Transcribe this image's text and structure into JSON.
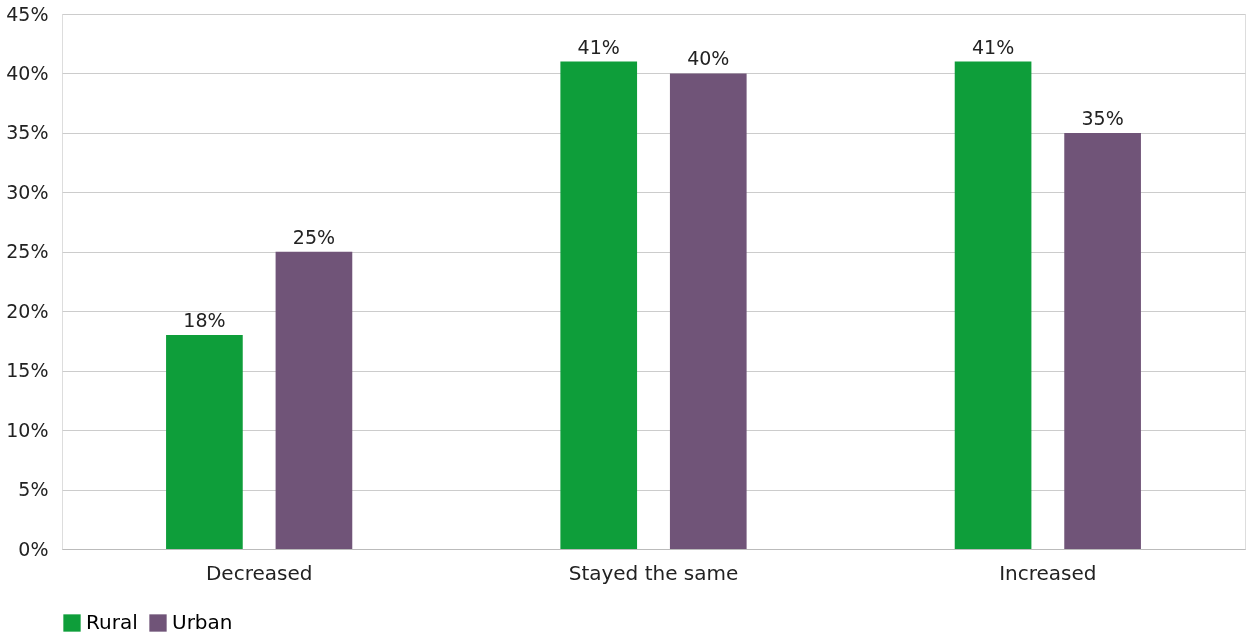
{
  "chart_data": {
    "type": "bar",
    "categories": [
      "Decreased",
      "Stayed the same",
      "Increased"
    ],
    "series": [
      {
        "name": "Rural",
        "color": "#0e9e3a",
        "values": [
          18,
          41,
          41
        ],
        "value_labels": [
          "18%",
          "41%",
          "41%"
        ]
      },
      {
        "name": "Urban",
        "color": "#705478",
        "values": [
          25,
          40,
          35
        ],
        "value_labels": [
          "25%",
          "40%",
          "35%"
        ]
      }
    ],
    "ylim": [
      0,
      45
    ],
    "yticks": [
      {
        "value": 0,
        "label": "0%"
      },
      {
        "value": 5,
        "label": "5%"
      },
      {
        "value": 10,
        "label": "10%"
      },
      {
        "value": 15,
        "label": "15%"
      },
      {
        "value": 20,
        "label": "20%"
      },
      {
        "value": 25,
        "label": "25%"
      },
      {
        "value": 30,
        "label": "30%"
      },
      {
        "value": 35,
        "label": "35%"
      },
      {
        "value": 40,
        "label": "40%"
      },
      {
        "value": 45,
        "label": "45%"
      }
    ],
    "grid": "y",
    "legend": "bottom"
  }
}
